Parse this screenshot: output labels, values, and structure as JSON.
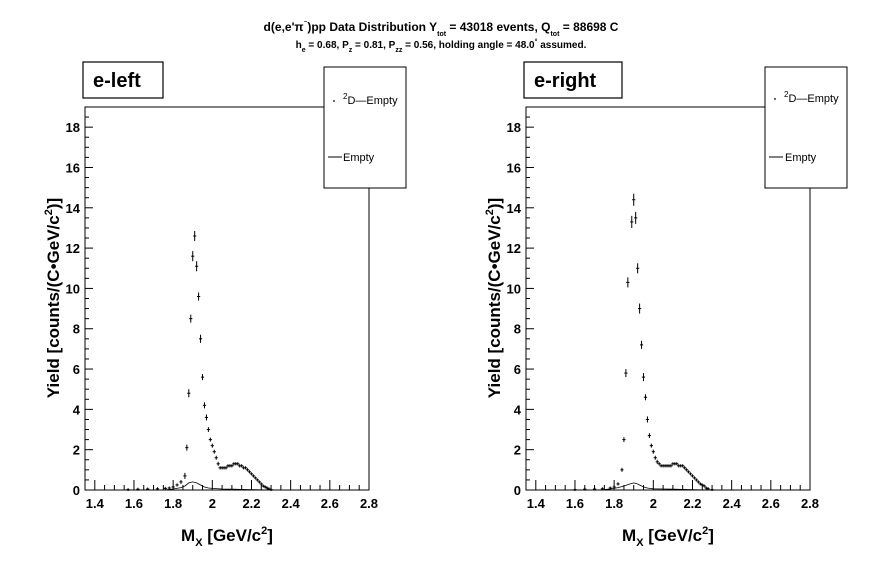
{
  "figure": {
    "title": {
      "parts": [
        "d",
        "(",
        "e",
        ",e'π",
        "⁻",
        ")pp Data Distribution Y",
        "tot",
        " = 43018 events, Q",
        "tot",
        " = 88698 C"
      ]
    },
    "subtitle": {
      "parts": [
        "h",
        "e",
        " = 0.68, P",
        "z",
        " = 0.81, P",
        "zz",
        " = 0.56, holding angle = 48.0",
        "°",
        " assumed."
      ]
    }
  },
  "chart_data": [
    {
      "type": "scatter",
      "panel_label": "e-left",
      "xlabel": {
        "main": "M",
        "sub": "X",
        "unit_pre": " [GeV/c",
        "unit_sup": "2",
        "unit_post": "]"
      },
      "ylabel": {
        "pre": "Yield [counts/(C•GeV/c",
        "sup": "2",
        "post": ")]"
      },
      "xlim": [
        1.35,
        2.8
      ],
      "ylim": [
        0,
        19
      ],
      "xticks": [
        "1.4",
        "1.6",
        "1.8",
        "2",
        "2.2",
        "2.4",
        "2.6",
        "2.8"
      ],
      "yticks": [
        "0",
        "2",
        "4",
        "6",
        "8",
        "10",
        "12",
        "14",
        "16",
        "18"
      ],
      "legend": {
        "entries": [
          {
            "sup": "2",
            "text": "D—Empty"
          },
          {
            "text": "Empty"
          }
        ],
        "placement": "top-right"
      },
      "series": [
        {
          "name": "D—Empty",
          "points": [
            [
              1.57,
              0.02,
              0.05
            ],
            [
              1.62,
              0.04,
              0.05
            ],
            [
              1.67,
              0.05,
              0.05
            ],
            [
              1.72,
              0.06,
              0.05
            ],
            [
              1.76,
              0.08,
              0.05
            ],
            [
              1.78,
              0.1,
              0.06
            ],
            [
              1.8,
              0.15,
              0.07
            ],
            [
              1.82,
              0.25,
              0.08
            ],
            [
              1.84,
              0.4,
              0.1
            ],
            [
              1.86,
              0.7,
              0.15
            ],
            [
              1.87,
              2.1,
              0.15
            ],
            [
              1.88,
              4.8,
              0.2
            ],
            [
              1.89,
              8.5,
              0.2
            ],
            [
              1.9,
              11.6,
              0.25
            ],
            [
              1.91,
              12.6,
              0.25
            ],
            [
              1.92,
              11.1,
              0.25
            ],
            [
              1.93,
              9.6,
              0.2
            ],
            [
              1.94,
              7.5,
              0.2
            ],
            [
              1.95,
              5.6,
              0.15
            ],
            [
              1.96,
              4.2,
              0.15
            ],
            [
              1.97,
              3.6,
              0.15
            ],
            [
              1.98,
              3.0,
              0.12
            ],
            [
              1.99,
              2.5,
              0.1
            ],
            [
              2.0,
              2.2,
              0.1
            ],
            [
              2.01,
              1.9,
              0.1
            ],
            [
              2.02,
              1.6,
              0.1
            ],
            [
              2.03,
              1.3,
              0.1
            ],
            [
              2.04,
              1.1,
              0.08
            ],
            [
              2.05,
              1.1,
              0.08
            ],
            [
              2.06,
              1.1,
              0.08
            ],
            [
              2.07,
              1.1,
              0.08
            ],
            [
              2.08,
              1.2,
              0.08
            ],
            [
              2.09,
              1.2,
              0.08
            ],
            [
              2.1,
              1.2,
              0.08
            ],
            [
              2.11,
              1.3,
              0.08
            ],
            [
              2.12,
              1.3,
              0.08
            ],
            [
              2.13,
              1.3,
              0.08
            ],
            [
              2.14,
              1.2,
              0.08
            ],
            [
              2.15,
              1.2,
              0.08
            ],
            [
              2.16,
              1.1,
              0.08
            ],
            [
              2.17,
              1.1,
              0.08
            ],
            [
              2.18,
              1.0,
              0.08
            ],
            [
              2.19,
              0.9,
              0.07
            ],
            [
              2.2,
              0.8,
              0.07
            ],
            [
              2.21,
              0.7,
              0.06
            ],
            [
              2.22,
              0.6,
              0.06
            ],
            [
              2.23,
              0.5,
              0.05
            ],
            [
              2.24,
              0.4,
              0.05
            ],
            [
              2.25,
              0.3,
              0.05
            ],
            [
              2.26,
              0.2,
              0.04
            ],
            [
              2.27,
              0.15,
              0.04
            ],
            [
              2.28,
              0.1,
              0.03
            ],
            [
              2.29,
              0.05,
              0.03
            ],
            [
              2.3,
              0.02,
              0.02
            ]
          ]
        },
        {
          "name": "Empty",
          "line": [
            [
              1.35,
              0
            ],
            [
              1.75,
              0
            ],
            [
              1.8,
              0.05
            ],
            [
              1.84,
              0.12
            ],
            [
              1.86,
              0.2
            ],
            [
              1.88,
              0.35
            ],
            [
              1.9,
              0.4
            ],
            [
              1.92,
              0.35
            ],
            [
              1.94,
              0.25
            ],
            [
              1.96,
              0.15
            ],
            [
              1.98,
              0.1
            ],
            [
              2.0,
              0.08
            ],
            [
              2.05,
              0.05
            ],
            [
              2.1,
              0.04
            ],
            [
              2.2,
              0.02
            ],
            [
              2.3,
              0
            ],
            [
              2.8,
              0
            ]
          ]
        }
      ]
    },
    {
      "type": "scatter",
      "panel_label": "e-right",
      "xlabel": {
        "main": "M",
        "sub": "X",
        "unit_pre": " [GeV/c",
        "unit_sup": "2",
        "unit_post": "]"
      },
      "ylabel": {
        "pre": "Yield [counts/(C•GeV/c",
        "sup": "2",
        "post": ")]"
      },
      "xlim": [
        1.35,
        2.8
      ],
      "ylim": [
        0,
        19
      ],
      "xticks": [
        "1.4",
        "1.6",
        "1.8",
        "2",
        "2.2",
        "2.4",
        "2.6",
        "2.8"
      ],
      "yticks": [
        "0",
        "2",
        "4",
        "6",
        "8",
        "10",
        "12",
        "14",
        "16",
        "18"
      ],
      "legend": {
        "entries": [
          {
            "sup": "2",
            "text": "D—Empty"
          },
          {
            "text": "Empty"
          }
        ],
        "placement": "top-right"
      },
      "series": [
        {
          "name": "D—Empty",
          "points": [
            [
              1.6,
              0.02,
              0.05
            ],
            [
              1.65,
              0.04,
              0.05
            ],
            [
              1.7,
              0.05,
              0.05
            ],
            [
              1.74,
              0.06,
              0.05
            ],
            [
              1.78,
              0.1,
              0.06
            ],
            [
              1.8,
              0.15,
              0.07
            ],
            [
              1.82,
              0.3,
              0.08
            ],
            [
              1.84,
              1.0,
              0.1
            ],
            [
              1.85,
              2.5,
              0.12
            ],
            [
              1.86,
              5.8,
              0.2
            ],
            [
              1.87,
              10.3,
              0.25
            ],
            [
              1.89,
              13.3,
              0.3
            ],
            [
              1.9,
              14.4,
              0.3
            ],
            [
              1.91,
              13.5,
              0.3
            ],
            [
              1.92,
              11.0,
              0.25
            ],
            [
              1.93,
              9.0,
              0.25
            ],
            [
              1.94,
              7.2,
              0.2
            ],
            [
              1.95,
              5.6,
              0.2
            ],
            [
              1.96,
              4.6,
              0.15
            ],
            [
              1.97,
              3.5,
              0.15
            ],
            [
              1.98,
              2.7,
              0.12
            ],
            [
              1.99,
              2.2,
              0.1
            ],
            [
              2.0,
              1.9,
              0.1
            ],
            [
              2.01,
              1.6,
              0.1
            ],
            [
              2.02,
              1.4,
              0.1
            ],
            [
              2.03,
              1.3,
              0.08
            ],
            [
              2.04,
              1.2,
              0.08
            ],
            [
              2.05,
              1.2,
              0.08
            ],
            [
              2.06,
              1.2,
              0.08
            ],
            [
              2.07,
              1.2,
              0.08
            ],
            [
              2.08,
              1.2,
              0.08
            ],
            [
              2.09,
              1.2,
              0.08
            ],
            [
              2.1,
              1.3,
              0.08
            ],
            [
              2.11,
              1.3,
              0.08
            ],
            [
              2.12,
              1.3,
              0.08
            ],
            [
              2.13,
              1.2,
              0.08
            ],
            [
              2.14,
              1.2,
              0.08
            ],
            [
              2.15,
              1.2,
              0.08
            ],
            [
              2.16,
              1.1,
              0.08
            ],
            [
              2.17,
              1.0,
              0.08
            ],
            [
              2.18,
              0.9,
              0.07
            ],
            [
              2.19,
              0.8,
              0.07
            ],
            [
              2.2,
              0.7,
              0.06
            ],
            [
              2.21,
              0.6,
              0.06
            ],
            [
              2.22,
              0.5,
              0.05
            ],
            [
              2.23,
              0.4,
              0.05
            ],
            [
              2.24,
              0.3,
              0.05
            ],
            [
              2.25,
              0.25,
              0.04
            ],
            [
              2.26,
              0.2,
              0.04
            ],
            [
              2.27,
              0.1,
              0.03
            ],
            [
              2.28,
              0.06,
              0.03
            ],
            [
              2.3,
              0.02,
              0.02
            ]
          ]
        },
        {
          "name": "Empty",
          "line": [
            [
              1.35,
              0
            ],
            [
              1.72,
              0
            ],
            [
              1.78,
              0.05
            ],
            [
              1.82,
              0.12
            ],
            [
              1.85,
              0.2
            ],
            [
              1.88,
              0.3
            ],
            [
              1.9,
              0.35
            ],
            [
              1.92,
              0.3
            ],
            [
              1.94,
              0.2
            ],
            [
              1.96,
              0.12
            ],
            [
              1.98,
              0.08
            ],
            [
              2.0,
              0.06
            ],
            [
              2.05,
              0.05
            ],
            [
              2.1,
              0.04
            ],
            [
              2.2,
              0.02
            ],
            [
              2.3,
              0
            ],
            [
              2.8,
              0
            ]
          ]
        }
      ]
    }
  ]
}
